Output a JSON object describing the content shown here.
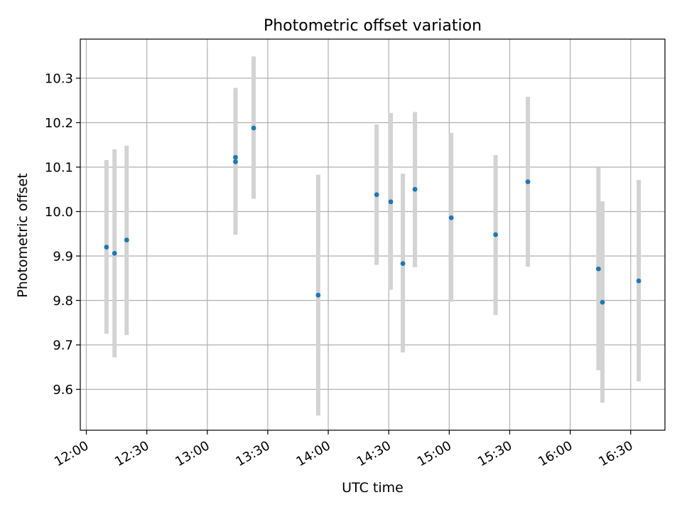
{
  "chart_data": {
    "type": "scatter",
    "title": "Photometric offset variation",
    "xlabel": "UTC time",
    "ylabel": "Photometric offset",
    "x_tick_labels": [
      "12:00",
      "12:30",
      "13:00",
      "13:30",
      "14:00",
      "14:30",
      "15:00",
      "15:30",
      "16:00",
      "16:30"
    ],
    "x_tick_minutes": [
      720,
      750,
      780,
      810,
      840,
      870,
      900,
      930,
      960,
      990
    ],
    "y_ticks": [
      9.6,
      9.7,
      9.8,
      9.9,
      10.0,
      10.1,
      10.2,
      10.3
    ],
    "y_tick_labels": [
      "9.6",
      "9.7",
      "9.8",
      "9.9",
      "10.0",
      "10.1",
      "10.2",
      "10.3"
    ],
    "xlim": [
      "11:57",
      "16:47"
    ],
    "ylim": [
      9.508,
      10.388
    ],
    "grid": true,
    "marker_color": "#1f77b4",
    "errorbar_color": "#d3d3d3",
    "points": [
      {
        "x": "12:10",
        "y": 9.92,
        "ylow": 9.725,
        "yhigh": 10.116
      },
      {
        "x": "12:14",
        "y": 9.906,
        "ylow": 9.672,
        "yhigh": 10.14
      },
      {
        "x": "12:20",
        "y": 9.936,
        "ylow": 9.722,
        "yhigh": 10.148
      },
      {
        "x": "13:14",
        "y": 10.122,
        "ylow": 9.948,
        "yhigh": 10.278
      },
      {
        "x": "13:14",
        "y": 10.112,
        "ylow": 9.948,
        "yhigh": 10.278
      },
      {
        "x": "13:23",
        "y": 10.188,
        "ylow": 10.029,
        "yhigh": 10.349
      },
      {
        "x": "13:55",
        "y": 9.812,
        "ylow": 9.541,
        "yhigh": 10.083
      },
      {
        "x": "14:24",
        "y": 10.038,
        "ylow": 9.88,
        "yhigh": 10.196
      },
      {
        "x": "14:31",
        "y": 10.022,
        "ylow": 9.824,
        "yhigh": 10.222
      },
      {
        "x": "14:37",
        "y": 9.883,
        "ylow": 9.683,
        "yhigh": 10.085
      },
      {
        "x": "14:43",
        "y": 10.05,
        "ylow": 9.875,
        "yhigh": 10.224
      },
      {
        "x": "15:01",
        "y": 9.986,
        "ylow": 9.797,
        "yhigh": 10.177
      },
      {
        "x": "15:23",
        "y": 9.948,
        "ylow": 9.767,
        "yhigh": 10.127
      },
      {
        "x": "15:39",
        "y": 10.067,
        "ylow": 9.876,
        "yhigh": 10.258
      },
      {
        "x": "16:14",
        "y": 9.871,
        "ylow": 9.643,
        "yhigh": 10.099
      },
      {
        "x": "16:16",
        "y": 9.796,
        "ylow": 9.57,
        "yhigh": 10.023
      },
      {
        "x": "16:34",
        "y": 9.844,
        "ylow": 9.618,
        "yhigh": 10.071
      }
    ]
  }
}
